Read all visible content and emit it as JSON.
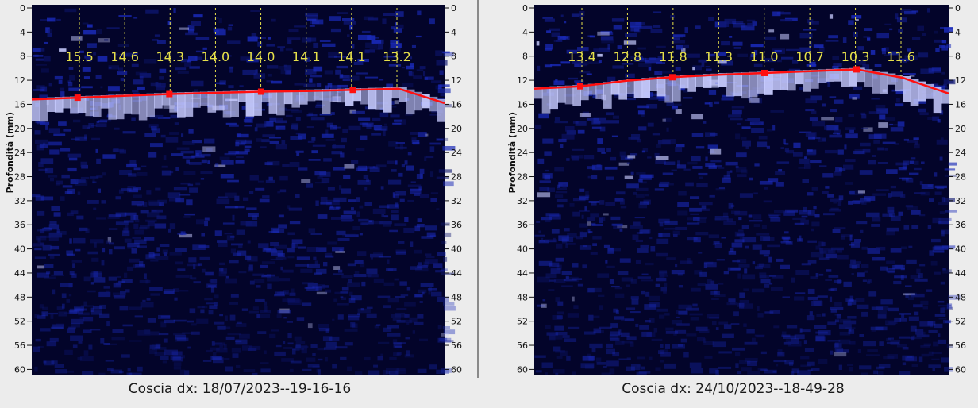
{
  "colors": {
    "background": "#ececec",
    "scan_dark": "#03042a",
    "scan_mid": "#1a2ab8",
    "scan_bright": "#c8ccff",
    "tissue_line": "#ff1010",
    "thickness_label": "#e6e04a",
    "axis_text": "#111111"
  },
  "axis": {
    "depth_label_left": "Profondità (mm)",
    "depth_label_right": "Profondità (mm)",
    "ticks": [
      "0",
      "4",
      "8",
      "12",
      "16",
      "20",
      "24",
      "28",
      "32",
      "36",
      "40",
      "44",
      "48",
      "52",
      "56",
      "60"
    ],
    "range_mm": [
      0,
      60
    ]
  },
  "scans": [
    {
      "caption": "Coscia dx: 18/07/2023--19-16-16",
      "measurements": [
        "15.5",
        "14.6",
        "14.3",
        "14.0",
        "14.0",
        "14.1",
        "14.1",
        "13.2"
      ],
      "interface_depth_mm": [
        15.2,
        14.9,
        14.6,
        14.3,
        14.1,
        13.9,
        13.8,
        13.6,
        13.4,
        15.8
      ]
    },
    {
      "caption": "Coscia dx: 24/10/2023--18-49-28",
      "measurements": [
        "13.4",
        "12.8",
        "11.8",
        "11.3",
        "11.0",
        "10.7",
        "10.3",
        "11.6"
      ],
      "interface_depth_mm": [
        13.4,
        13.0,
        12.1,
        11.5,
        11.1,
        10.8,
        10.5,
        10.2,
        11.6,
        14.2
      ]
    }
  ]
}
